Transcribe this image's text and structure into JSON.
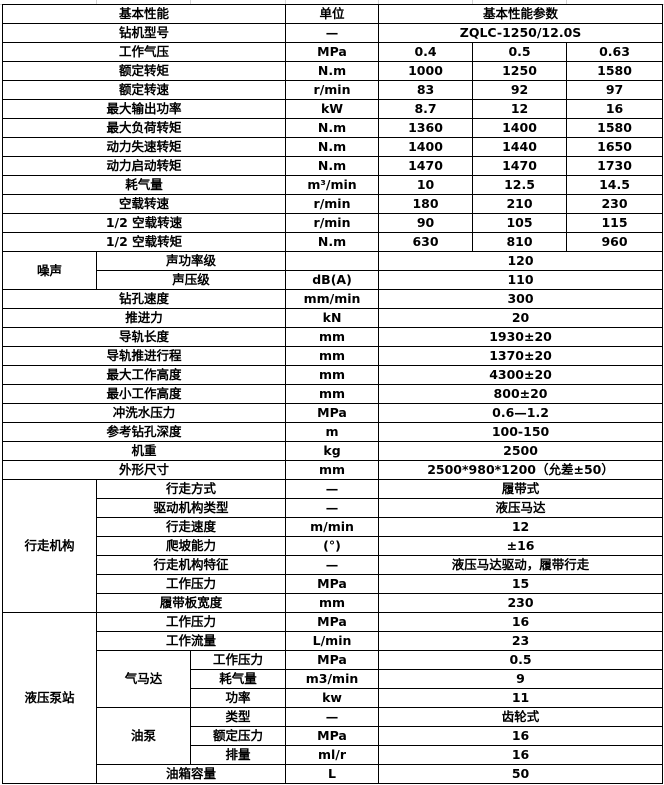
{
  "header": {
    "param": "基本性能",
    "unit": "单位",
    "values": "基本性能参数"
  },
  "model": {
    "label": "钻机型号",
    "unit": "—",
    "value": "ZQLC-1250/12.0S"
  },
  "basic": [
    {
      "label": "工作气压",
      "unit": "MPa",
      "values": [
        "0.4",
        "0.5",
        "0.63"
      ]
    },
    {
      "label": "额定转矩",
      "unit": "N.m",
      "values": [
        "1000",
        "1250",
        "1580"
      ]
    },
    {
      "label": "额定转速",
      "unit": "r/min",
      "values": [
        "83",
        "92",
        "97"
      ]
    },
    {
      "label": "最大输出功率",
      "unit": "kW",
      "values": [
        "8.7",
        "12",
        "16"
      ]
    },
    {
      "label": "最大负荷转矩",
      "unit": "N.m",
      "values": [
        "1360",
        "1400",
        "1580"
      ]
    },
    {
      "label": "动力失速转矩",
      "unit": "N.m",
      "values": [
        "1400",
        "1440",
        "1650"
      ]
    },
    {
      "label": "动力启动转矩",
      "unit": "N.m",
      "values": [
        "1470",
        "1470",
        "1730"
      ]
    },
    {
      "label": "耗气量",
      "unit": "m³/min",
      "values": [
        "10",
        "12.5",
        "14.5"
      ]
    },
    {
      "label": "空载转速",
      "unit": "r/min",
      "values": [
        "180",
        "210",
        "230"
      ]
    },
    {
      "label": "1/2 空载转速",
      "unit": "r/min",
      "values": [
        "90",
        "105",
        "115"
      ]
    },
    {
      "label": "1/2 空载转矩",
      "unit": "N.m",
      "values": [
        "630",
        "810",
        "960"
      ]
    }
  ],
  "noise": {
    "label": "噪声",
    "items": [
      {
        "label": "声功率级",
        "unit": "",
        "value": "120"
      },
      {
        "label": "声压级",
        "unit": "dB(A)",
        "value": "110"
      }
    ]
  },
  "general": [
    {
      "label": "钻孔速度",
      "unit": "mm/min",
      "value": "300"
    },
    {
      "label": "推进力",
      "unit": "kN",
      "value": "20"
    },
    {
      "label": "导轨长度",
      "unit": "mm",
      "value": "1930±20"
    },
    {
      "label": "导轨推进行程",
      "unit": "mm",
      "value": "1370±20"
    },
    {
      "label": "最大工作高度",
      "unit": "mm",
      "value": "4300±20"
    },
    {
      "label": "最小工作高度",
      "unit": "mm",
      "value": "800±20"
    },
    {
      "label": "冲洗水压力",
      "unit": "MPa",
      "value": "0.6—1.2"
    },
    {
      "label": "参考钻孔深度",
      "unit": "m",
      "value": "100-150"
    },
    {
      "label": "机重",
      "unit": "kg",
      "value": "2500"
    },
    {
      "label": "外形尺寸",
      "unit": "mm",
      "value": "2500*980*1200（允差±50）"
    }
  ],
  "travel": {
    "label": "行走机构",
    "items": [
      {
        "label": "行走方式",
        "unit": "—",
        "value": "履带式"
      },
      {
        "label": "驱动机构类型",
        "unit": "—",
        "value": "液压马达"
      },
      {
        "label": "行走速度",
        "unit": "m/min",
        "value": "12"
      },
      {
        "label": "爬坡能力",
        "unit": "(°)",
        "value": "±16"
      },
      {
        "label": "行走机构特征",
        "unit": "—",
        "value": "液压马达驱动，履带行走"
      },
      {
        "label": "工作压力",
        "unit": "MPa",
        "value": "15"
      },
      {
        "label": "履带板宽度",
        "unit": "mm",
        "value": "230"
      }
    ]
  },
  "hydraulic": {
    "label": "液压泵站",
    "items": [
      {
        "label": "工作压力",
        "unit": "MPa",
        "value": "16"
      },
      {
        "label": "工作流量",
        "unit": "L/min",
        "value": "23"
      },
      {
        "label": "气马达",
        "subitems": [
          {
            "label": "工作压力",
            "unit": "MPa",
            "value": "0.5"
          },
          {
            "label": "耗气量",
            "unit": "m3/min",
            "value": "9"
          },
          {
            "label": "功率",
            "unit": "kw",
            "value": "11"
          }
        ]
      },
      {
        "label": "油泵",
        "subitems": [
          {
            "label": "类型",
            "unit": "—",
            "value": "齿轮式"
          },
          {
            "label": "额定压力",
            "unit": "MPa",
            "value": "16"
          },
          {
            "label": "排量",
            "unit": "ml/r",
            "value": "16"
          }
        ]
      },
      {
        "label": "油箱容量",
        "unit": "L",
        "value": "50"
      }
    ]
  }
}
